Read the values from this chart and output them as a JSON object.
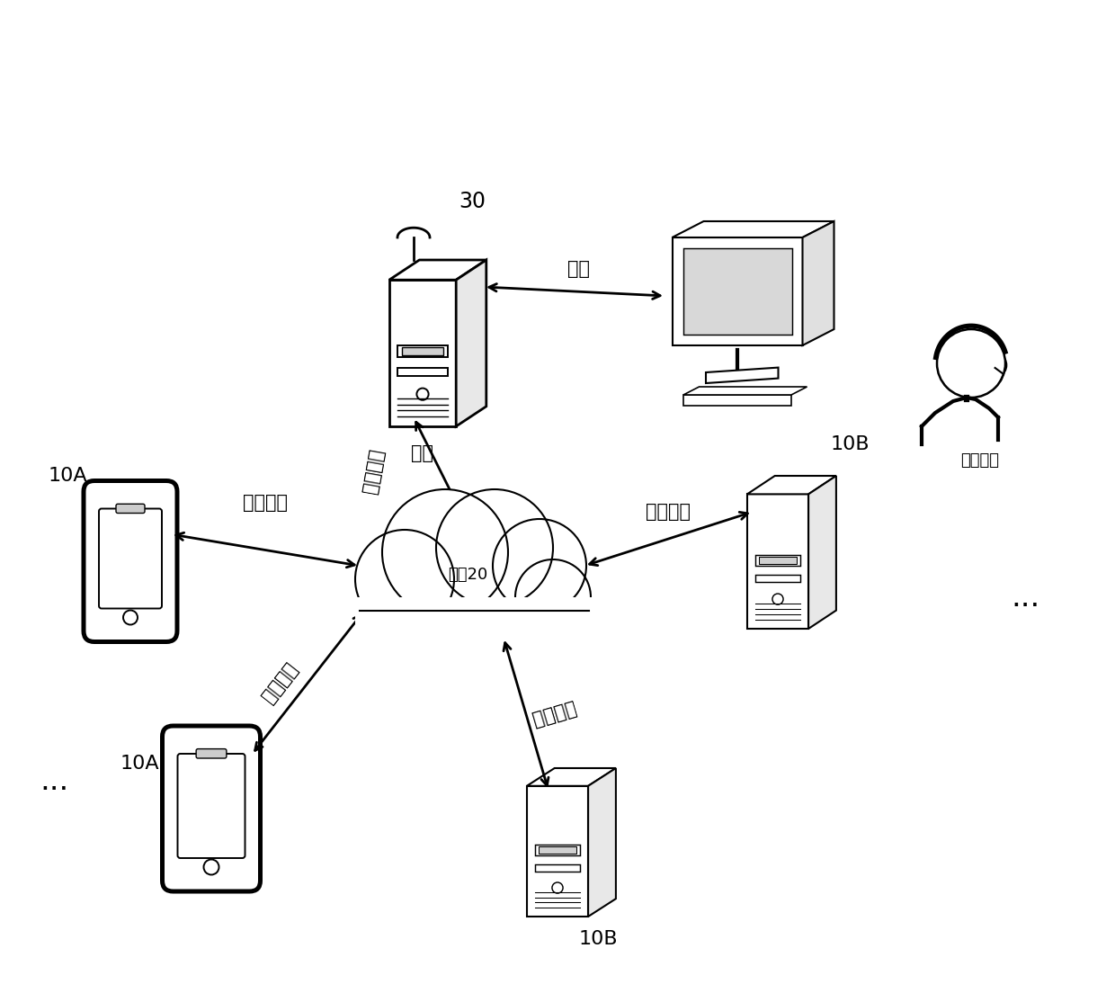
{
  "background_color": "#ffffff",
  "text_color": "#000000",
  "label_30": "30",
  "label_10A": "10A",
  "label_10B": "10B",
  "label_host": "主机",
  "label_network": "网络20",
  "label_emergency": "应急人员",
  "label_alarm": "报警",
  "label_behavior": "行为数据",
  "figsize": [
    12.4,
    11.14
  ],
  "dpi": 100,
  "lw_main": 1.5,
  "lw_thick": 2.0,
  "fs_label": 15,
  "fs_small": 13
}
